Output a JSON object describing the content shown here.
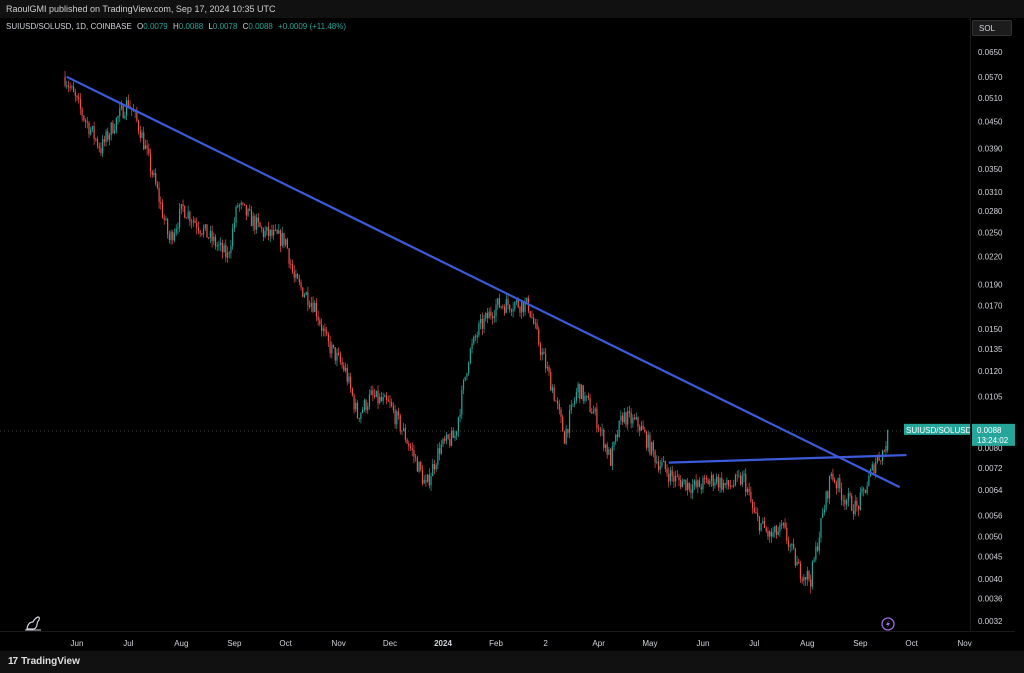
{
  "header": {
    "published": "RaoulGMI published on TradingView.com, Sep 17, 2024 10:35 UTC"
  },
  "legend": {
    "symbol": "SUIUSD/SOLUSD, 1D, COINBASE",
    "o_label": "O",
    "o_value": "0.0079",
    "h_label": "H",
    "h_value": "0.0088",
    "l_label": "L",
    "l_value": "0.0078",
    "c_label": "C",
    "c_value": "0.0088",
    "change": "+0.0009 (+11.48%)"
  },
  "toolbar": {
    "symbol_button": "SOL"
  },
  "price_tag": {
    "symbol": "SUIUSD/SOLUSD",
    "price": "0.0088",
    "countdown": "13:24:02"
  },
  "footer": {
    "brand": "TradingView"
  },
  "colors": {
    "up": "#26a69a",
    "down": "#ef5350",
    "trendline": "#3b5bdb",
    "background": "#000000"
  },
  "chart_data": {
    "type": "candlestick",
    "symbol": "SUIUSD/SOLUSD",
    "interval": "1D",
    "exchange": "COINBASE",
    "y_scale": "log",
    "ylim": [
      0.003,
      0.07
    ],
    "y_ticks": [
      "0.0650",
      "0.0570",
      "0.0510",
      "0.0450",
      "0.0390",
      "0.0350",
      "0.0310",
      "0.0280",
      "0.0250",
      "0.0220",
      "0.0190",
      "0.0170",
      "0.0150",
      "0.0135",
      "0.0120",
      "0.0105",
      "0.0080",
      "0.0072",
      "0.0064",
      "0.0056",
      "0.0050",
      "0.0045",
      "0.0040",
      "0.0036",
      "0.0032"
    ],
    "x_ticks": [
      "Jun",
      "Jul",
      "Aug",
      "Sep",
      "Oct",
      "Nov",
      "Dec",
      "2024",
      "Feb",
      "2",
      "Apr",
      "May",
      "Jun",
      "Jul",
      "Aug",
      "Sep",
      "Oct",
      "Nov"
    ],
    "close_path": [
      {
        "date": "2023-05-25",
        "close": 0.057
      },
      {
        "date": "2023-06-05",
        "close": 0.046
      },
      {
        "date": "2023-06-15",
        "close": 0.039
      },
      {
        "date": "2023-06-22",
        "close": 0.044
      },
      {
        "date": "2023-07-01",
        "close": 0.05
      },
      {
        "date": "2023-07-08",
        "close": 0.043
      },
      {
        "date": "2023-07-18",
        "close": 0.031
      },
      {
        "date": "2023-07-25",
        "close": 0.024
      },
      {
        "date": "2023-08-02",
        "close": 0.0285
      },
      {
        "date": "2023-08-15",
        "close": 0.025
      },
      {
        "date": "2023-08-28",
        "close": 0.022
      },
      {
        "date": "2023-09-03",
        "close": 0.029
      },
      {
        "date": "2023-09-18",
        "close": 0.025
      },
      {
        "date": "2023-10-01",
        "close": 0.024
      },
      {
        "date": "2023-10-06",
        "close": 0.0195
      },
      {
        "date": "2023-10-18",
        "close": 0.017
      },
      {
        "date": "2023-10-25",
        "close": 0.014
      },
      {
        "date": "2023-11-05",
        "close": 0.012
      },
      {
        "date": "2023-11-12",
        "close": 0.0095
      },
      {
        "date": "2023-11-20",
        "close": 0.0105
      },
      {
        "date": "2023-12-01",
        "close": 0.01
      },
      {
        "date": "2023-12-10",
        "close": 0.0085
      },
      {
        "date": "2023-12-18",
        "close": 0.0072
      },
      {
        "date": "2023-12-22",
        "close": 0.0065
      },
      {
        "date": "2023-12-30",
        "close": 0.008
      },
      {
        "date": "2024-01-08",
        "close": 0.0085
      },
      {
        "date": "2024-01-16",
        "close": 0.013
      },
      {
        "date": "2024-01-22",
        "close": 0.015
      },
      {
        "date": "2024-02-01",
        "close": 0.017
      },
      {
        "date": "2024-02-12",
        "close": 0.0172
      },
      {
        "date": "2024-02-20",
        "close": 0.017
      },
      {
        "date": "2024-02-27",
        "close": 0.0135
      },
      {
        "date": "2024-03-05",
        "close": 0.011
      },
      {
        "date": "2024-03-12",
        "close": 0.0085
      },
      {
        "date": "2024-03-20",
        "close": 0.011
      },
      {
        "date": "2024-03-30",
        "close": 0.0095
      },
      {
        "date": "2024-04-08",
        "close": 0.0075
      },
      {
        "date": "2024-04-15",
        "close": 0.0095
      },
      {
        "date": "2024-04-25",
        "close": 0.009
      },
      {
        "date": "2024-05-05",
        "close": 0.0075
      },
      {
        "date": "2024-05-15",
        "close": 0.0068
      },
      {
        "date": "2024-05-28",
        "close": 0.0065
      },
      {
        "date": "2024-06-08",
        "close": 0.0068
      },
      {
        "date": "2024-06-15",
        "close": 0.0065
      },
      {
        "date": "2024-06-25",
        "close": 0.0068
      },
      {
        "date": "2024-07-01",
        "close": 0.0056
      },
      {
        "date": "2024-07-10",
        "close": 0.005
      },
      {
        "date": "2024-07-18",
        "close": 0.0052
      },
      {
        "date": "2024-07-27",
        "close": 0.0042
      },
      {
        "date": "2024-08-03",
        "close": 0.004
      },
      {
        "date": "2024-08-10",
        "close": 0.0056
      },
      {
        "date": "2024-08-15",
        "close": 0.007
      },
      {
        "date": "2024-08-22",
        "close": 0.0062
      },
      {
        "date": "2024-08-30",
        "close": 0.0058
      },
      {
        "date": "2024-09-05",
        "close": 0.0066
      },
      {
        "date": "2024-09-10",
        "close": 0.0075
      },
      {
        "date": "2024-09-15",
        "close": 0.0079
      },
      {
        "date": "2024-09-17",
        "close": 0.0088
      }
    ],
    "last": {
      "open": 0.0079,
      "high": 0.0088,
      "low": 0.0078,
      "close": 0.0088
    },
    "trendlines": [
      {
        "name": "descending resistance",
        "start": {
          "date": "2023-05-26",
          "price": 0.057
        },
        "end": {
          "date": "2024-09-24",
          "price": 0.0065
        }
      },
      {
        "name": "horizontal breakout",
        "start": {
          "date": "2024-05-12",
          "price": 0.0074
        },
        "end": {
          "date": "2024-09-28",
          "price": 0.0077
        }
      }
    ],
    "grid": false,
    "current_price_line": true
  }
}
